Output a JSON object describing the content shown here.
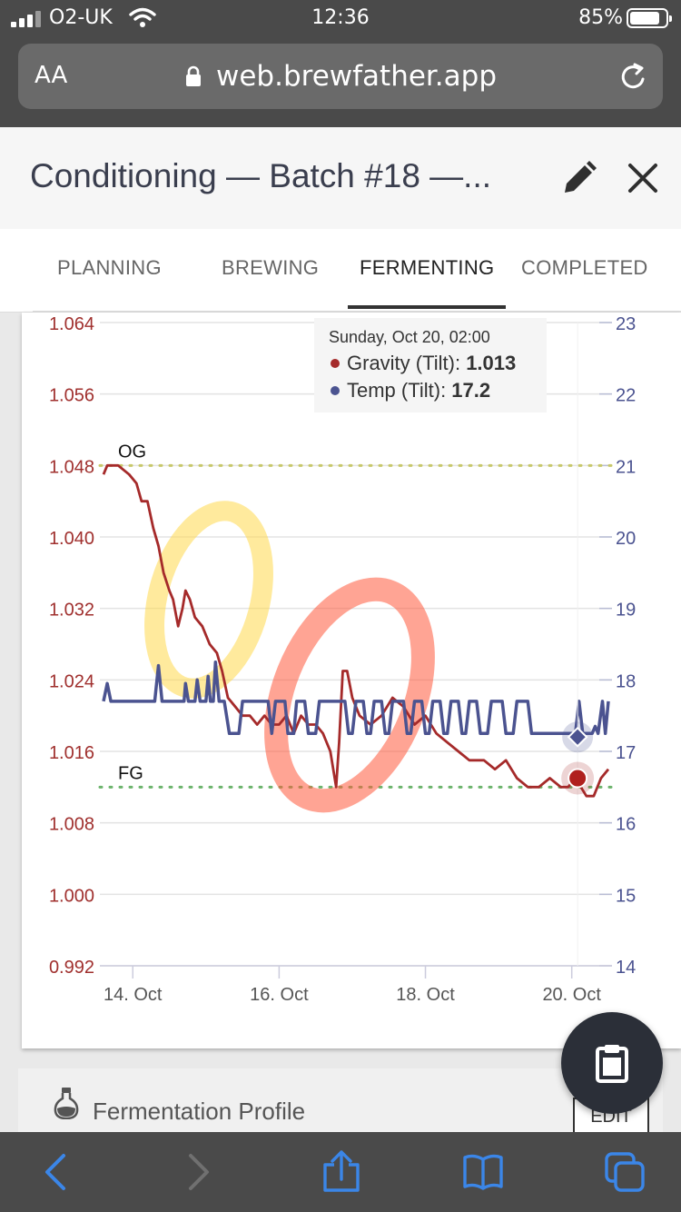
{
  "status_bar": {
    "carrier": "O2-UK",
    "time": "12:36",
    "battery_percent": "85%",
    "battery_level": 0.85
  },
  "browser": {
    "text_size_label": "AA",
    "url": "web.brewfather.app"
  },
  "header": {
    "title": "Conditioning — Batch #18 —..."
  },
  "tabs": [
    {
      "label": "PLANNING"
    },
    {
      "label": "BREWING"
    },
    {
      "label": "FERMENTING",
      "active": true
    },
    {
      "label": "COMPLETED"
    }
  ],
  "tooltip": {
    "date": "Sunday, Oct 20, 02:00",
    "gravity_label": "Gravity (Tilt): ",
    "gravity_value": "1.013",
    "temp_label": "Temp (Tilt): ",
    "temp_value": "17.2"
  },
  "chart_data": {
    "type": "line",
    "x_unit": "days (Oct)",
    "x_ticks": [
      {
        "value": 14,
        "label": "14. Oct"
      },
      {
        "value": 16,
        "label": "16. Oct"
      },
      {
        "value": 18,
        "label": "18. Oct"
      },
      {
        "value": 20,
        "label": "20. Oct"
      }
    ],
    "xlim": [
      13.55,
      20.55
    ],
    "y_left": {
      "ticks": [
        "1.064",
        "1.056",
        "1.048",
        "1.040",
        "1.032",
        "1.024",
        "1.016",
        "1.008",
        "1.000",
        "0.992"
      ],
      "ylim": [
        0.992,
        1.064
      ]
    },
    "y_right": {
      "ticks": [
        "23",
        "22",
        "21",
        "20",
        "19",
        "18",
        "17",
        "16",
        "15",
        "14"
      ],
      "ylim": [
        14,
        23
      ]
    },
    "grid": true,
    "reference_lines": [
      {
        "label": "OG",
        "value": 1.048,
        "color": "#c8c86a"
      },
      {
        "label": "FG",
        "value": 1.012,
        "color": "#6bb36b"
      }
    ],
    "series": [
      {
        "name": "Gravity (Tilt)",
        "axis": "left",
        "color": "#a52a2a",
        "points": [
          [
            13.6,
            1.047
          ],
          [
            13.65,
            1.048
          ],
          [
            13.8,
            1.048
          ],
          [
            13.95,
            1.047
          ],
          [
            14.05,
            1.046
          ],
          [
            14.12,
            1.044
          ],
          [
            14.2,
            1.044
          ],
          [
            14.28,
            1.041
          ],
          [
            14.35,
            1.039
          ],
          [
            14.42,
            1.036
          ],
          [
            14.5,
            1.034
          ],
          [
            14.55,
            1.033
          ],
          [
            14.62,
            1.03
          ],
          [
            14.68,
            1.032
          ],
          [
            14.72,
            1.034
          ],
          [
            14.78,
            1.033
          ],
          [
            14.85,
            1.031
          ],
          [
            14.95,
            1.03
          ],
          [
            15.05,
            1.028
          ],
          [
            15.15,
            1.027
          ],
          [
            15.22,
            1.025
          ],
          [
            15.3,
            1.022
          ],
          [
            15.4,
            1.021
          ],
          [
            15.5,
            1.02
          ],
          [
            15.6,
            1.02
          ],
          [
            15.7,
            1.019
          ],
          [
            15.8,
            1.02
          ],
          [
            15.9,
            1.019
          ],
          [
            16.0,
            1.019
          ],
          [
            16.1,
            1.02
          ],
          [
            16.2,
            1.018
          ],
          [
            16.3,
            1.02
          ],
          [
            16.4,
            1.019
          ],
          [
            16.5,
            1.019
          ],
          [
            16.6,
            1.018
          ],
          [
            16.7,
            1.016
          ],
          [
            16.78,
            1.012
          ],
          [
            16.82,
            1.017
          ],
          [
            16.87,
            1.025
          ],
          [
            16.93,
            1.025
          ],
          [
            17.0,
            1.022
          ],
          [
            17.1,
            1.02
          ],
          [
            17.25,
            1.019
          ],
          [
            17.4,
            1.02
          ],
          [
            17.55,
            1.022
          ],
          [
            17.7,
            1.021
          ],
          [
            17.85,
            1.019
          ],
          [
            18.0,
            1.02
          ],
          [
            18.15,
            1.018
          ],
          [
            18.3,
            1.017
          ],
          [
            18.45,
            1.016
          ],
          [
            18.6,
            1.015
          ],
          [
            18.8,
            1.015
          ],
          [
            18.95,
            1.014
          ],
          [
            19.1,
            1.015
          ],
          [
            19.25,
            1.013
          ],
          [
            19.4,
            1.012
          ],
          [
            19.55,
            1.012
          ],
          [
            19.7,
            1.013
          ],
          [
            19.85,
            1.012
          ],
          [
            19.95,
            1.012
          ],
          [
            20.05,
            1.013
          ],
          [
            20.2,
            1.011
          ],
          [
            20.3,
            1.011
          ],
          [
            20.4,
            1.013
          ],
          [
            20.5,
            1.014
          ]
        ]
      },
      {
        "name": "Temp (Tilt)",
        "axis": "right",
        "color": "#4b5390",
        "points": [
          [
            13.6,
            17.7
          ],
          [
            13.65,
            17.95
          ],
          [
            13.7,
            17.7
          ],
          [
            14.0,
            17.7
          ],
          [
            14.3,
            17.7
          ],
          [
            14.35,
            18.2
          ],
          [
            14.4,
            17.7
          ],
          [
            14.7,
            17.7
          ],
          [
            14.72,
            17.95
          ],
          [
            14.76,
            17.7
          ],
          [
            14.85,
            17.7
          ],
          [
            14.88,
            18.0
          ],
          [
            14.92,
            17.7
          ],
          [
            15.0,
            17.7
          ],
          [
            15.03,
            18.05
          ],
          [
            15.06,
            17.7
          ],
          [
            15.1,
            17.7
          ],
          [
            15.13,
            18.25
          ],
          [
            15.18,
            17.7
          ],
          [
            15.25,
            17.7
          ],
          [
            15.32,
            17.25
          ],
          [
            15.45,
            17.25
          ],
          [
            15.5,
            17.7
          ],
          [
            15.85,
            17.7
          ],
          [
            15.9,
            17.25
          ],
          [
            15.95,
            17.7
          ],
          [
            16.08,
            17.7
          ],
          [
            16.12,
            17.25
          ],
          [
            16.2,
            17.25
          ],
          [
            16.24,
            17.7
          ],
          [
            16.35,
            17.7
          ],
          [
            16.4,
            17.25
          ],
          [
            16.5,
            17.25
          ],
          [
            16.55,
            17.7
          ],
          [
            16.9,
            17.7
          ],
          [
            16.95,
            17.25
          ],
          [
            17.0,
            17.25
          ],
          [
            17.05,
            17.7
          ],
          [
            17.15,
            17.7
          ],
          [
            17.2,
            17.25
          ],
          [
            17.25,
            17.25
          ],
          [
            17.3,
            17.7
          ],
          [
            17.4,
            17.7
          ],
          [
            17.45,
            17.25
          ],
          [
            17.5,
            17.25
          ],
          [
            17.55,
            17.7
          ],
          [
            17.7,
            17.7
          ],
          [
            17.75,
            17.25
          ],
          [
            17.8,
            17.25
          ],
          [
            17.85,
            17.7
          ],
          [
            17.95,
            17.7
          ],
          [
            18.0,
            17.25
          ],
          [
            18.05,
            17.25
          ],
          [
            18.1,
            17.7
          ],
          [
            18.2,
            17.7
          ],
          [
            18.25,
            17.25
          ],
          [
            18.3,
            17.25
          ],
          [
            18.35,
            17.7
          ],
          [
            18.45,
            17.7
          ],
          [
            18.5,
            17.25
          ],
          [
            18.55,
            17.25
          ],
          [
            18.6,
            17.7
          ],
          [
            18.7,
            17.7
          ],
          [
            18.75,
            17.25
          ],
          [
            18.85,
            17.25
          ],
          [
            18.9,
            17.7
          ],
          [
            19.05,
            17.7
          ],
          [
            19.1,
            17.25
          ],
          [
            19.2,
            17.25
          ],
          [
            19.25,
            17.7
          ],
          [
            19.4,
            17.7
          ],
          [
            19.45,
            17.25
          ],
          [
            19.9,
            17.25
          ],
          [
            20.05,
            17.25
          ],
          [
            20.1,
            17.7
          ],
          [
            20.15,
            17.25
          ],
          [
            20.28,
            17.25
          ],
          [
            20.32,
            17.35
          ],
          [
            20.36,
            17.25
          ],
          [
            20.42,
            17.7
          ],
          [
            20.46,
            17.25
          ],
          [
            20.5,
            17.7
          ]
        ]
      }
    ],
    "highlighted_point": {
      "x": 20.08
    }
  },
  "annotations": [
    {
      "color": "#ffd84d",
      "shape": "ellipse"
    },
    {
      "color": "#ff5a3c",
      "shape": "ellipse"
    }
  ],
  "profile": {
    "label": "Fermentation Profile",
    "edit_label": "EDIT"
  },
  "icons": {
    "signal": "signal-bars-icon",
    "wifi": "wifi-icon",
    "battery": "battery-icon",
    "lock": "lock-icon",
    "reload": "reload-icon",
    "edit": "pencil-icon",
    "close": "close-icon",
    "fab": "clipboard-icon",
    "back": "back-chevron-icon",
    "forward": "forward-chevron-icon",
    "share": "share-icon",
    "bookmarks": "book-icon",
    "tabs": "tabs-icon"
  }
}
